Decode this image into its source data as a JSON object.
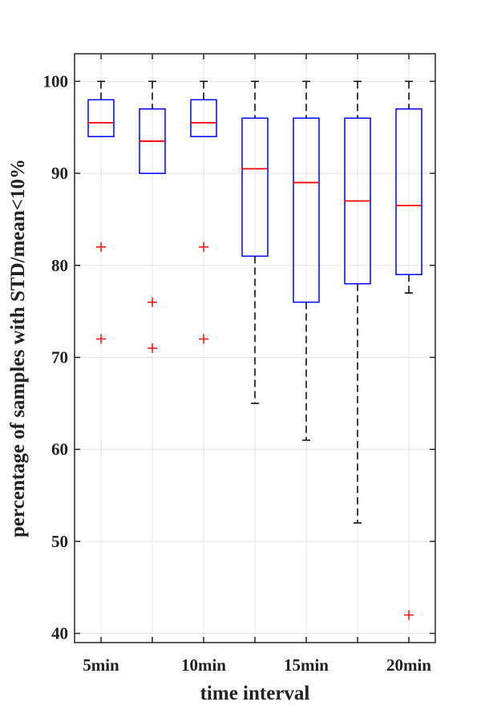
{
  "chart_data": {
    "type": "boxplot",
    "xlabel": "time interval",
    "ylabel": "percentage of samples with STD/mean<10%",
    "ylim": [
      39,
      103
    ],
    "yticks": [
      40,
      50,
      60,
      70,
      80,
      90,
      100
    ],
    "x_tick_labels": [
      "5min",
      "",
      "10min",
      "",
      "15min",
      "",
      "20min"
    ],
    "grid": true,
    "colors": {
      "box": "#0000ff",
      "median": "#ff0000",
      "whisker": "#000000",
      "outlier": "#ff0000"
    },
    "boxes": [
      {
        "whisker_low": 94,
        "q1": 94,
        "median": 95.5,
        "q3": 98,
        "whisker_high": 100,
        "outliers": [
          82,
          72
        ]
      },
      {
        "whisker_low": 90,
        "q1": 90,
        "median": 93.5,
        "q3": 97,
        "whisker_high": 100,
        "outliers": [
          76,
          71
        ]
      },
      {
        "whisker_low": 94,
        "q1": 94,
        "median": 95.5,
        "q3": 98,
        "whisker_high": 100,
        "outliers": [
          82,
          72
        ]
      },
      {
        "whisker_low": 65,
        "q1": 81,
        "median": 90.5,
        "q3": 96,
        "whisker_high": 100,
        "outliers": []
      },
      {
        "whisker_low": 61,
        "q1": 76,
        "median": 89,
        "q3": 96,
        "whisker_high": 100,
        "outliers": []
      },
      {
        "whisker_low": 52,
        "q1": 78,
        "median": 87,
        "q3": 96,
        "whisker_high": 100,
        "outliers": []
      },
      {
        "whisker_low": 77,
        "q1": 79,
        "median": 86.5,
        "q3": 97,
        "whisker_high": 100,
        "outliers": [
          42
        ]
      }
    ]
  }
}
